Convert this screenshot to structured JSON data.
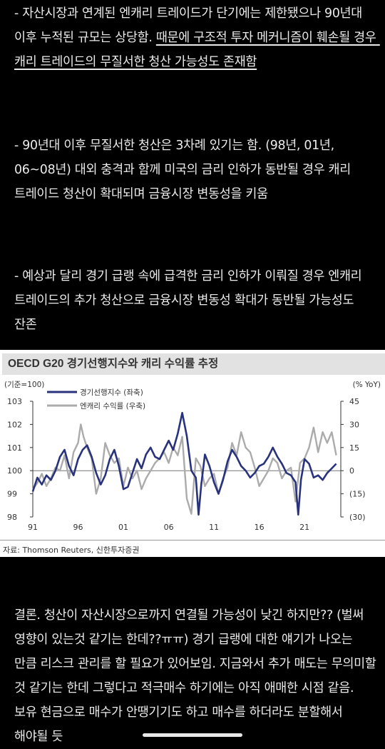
{
  "paragraphs": {
    "p1_prefix": "- 자산시장과 연계된 엔캐리 트레이드가 단기에는 제한됐으나 90년대 이후 누적된 규모는 상당함. ",
    "p1_underlined": "때문에 구조적 투자 메커니즘이 훼손될 경우 캐리 트레이드의 무질서한 청산 가능성도 존재함",
    "p2": "- 90년대 이후 무질서한 청산은 3차례 있기는 함. (98년, 01년, 06~08년) 대외 충격과 함께 미국의 금리 인하가 동반될 경우 캐리 트레이드 청산이 확대되며 금융시장 변동성을 키움",
    "p3": "- 예상과 달리 경기 급랭 속에 급격한 금리 인하가 이뤄질 경우 엔캐리 트레이드의 추가 청산으로 금융시장 변동성 확대가 동반될 가능성도 잔존",
    "p4": "결론. 청산이 자산시장으로까지 연결될 가능성이 낮긴 하지만?? (벌써 영향이 있는것 같기는 한데??ㅠㅠ) 경기 급랭에 대한 얘기가 나오는 만큼 리스크 관리를 할 필요가 있어보임. 지금와서 추가 매도는 무의미할 것 같기는 한데 그렇다고 적극매수 하기에는 아직 애매한 시점 같음. 보유 현금으로 매수가 안땡기기도 하고 매수를 하더라도 분할해서 해야될 듯"
  },
  "figure": {
    "title": "OECD G20 경기선행지수와 캐리 수익률 추정",
    "source": "자료: Thomson Reuters, 신한투자증권"
  },
  "chart_data": {
    "type": "line",
    "title": "OECD G20 경기선행지수와 캐리 수익률 추정",
    "left_axis_label": "(기준=100)",
    "right_axis_label": "(% YoY)",
    "left_ylim": [
      98,
      103
    ],
    "right_ylim": [
      -30,
      45
    ],
    "left_ticks": [
      "103",
      "102",
      "101",
      "100",
      "99",
      "98"
    ],
    "right_ticks": [
      "45",
      "30",
      "15",
      "0",
      "(15)",
      "(30)"
    ],
    "x_ticks": [
      "91",
      "96",
      "01",
      "06",
      "11",
      "16",
      "21"
    ],
    "x_tick_years": [
      1991,
      1996,
      2001,
      2006,
      2011,
      2016,
      2021
    ],
    "xlim": [
      1991,
      2025
    ],
    "legend": [
      "경기선행지수 (좌축)",
      "엔캐리 수익률 (우축)"
    ],
    "colors": {
      "lead": "#28327d",
      "carry": "#ababab"
    },
    "series": [
      {
        "name": "경기선행지수 (좌축)",
        "axis": "left",
        "x": [
          1991,
          1991.5,
          1992,
          1992.5,
          1993,
          1993.5,
          1994,
          1994.5,
          1995,
          1995.5,
          1996,
          1996.5,
          1997,
          1997.5,
          1998,
          1998.5,
          1999,
          1999.5,
          2000,
          2000.5,
          2001,
          2001.5,
          2002,
          2002.5,
          2003,
          2003.5,
          2004,
          2004.5,
          2005,
          2005.5,
          2006,
          2006.5,
          2007,
          2007.5,
          2008,
          2008.5,
          2009,
          2009.3,
          2009.6,
          2010,
          2010.5,
          2011,
          2011.5,
          2012,
          2012.5,
          2013,
          2013.5,
          2014,
          2014.5,
          2015,
          2015.5,
          2016,
          2016.5,
          2017,
          2017.5,
          2018,
          2018.5,
          2019,
          2019.5,
          2020,
          2020.3,
          2020.6,
          2021,
          2021.5,
          2022,
          2022.5,
          2023,
          2023.5,
          2024,
          2024.5
        ],
        "values": [
          99.1,
          99.7,
          99.4,
          99.8,
          99.6,
          100.0,
          100.6,
          100.9,
          100.2,
          99.8,
          100.5,
          100.9,
          101.1,
          100.6,
          99.9,
          99.4,
          99.8,
          100.5,
          100.9,
          100.2,
          99.2,
          99.3,
          99.9,
          100.5,
          100.1,
          100.7,
          101.0,
          100.6,
          100.5,
          100.9,
          101.3,
          100.9,
          101.6,
          102.5,
          101.5,
          100.0,
          99.7,
          98.1,
          99.4,
          100.7,
          100.2,
          99.5,
          99.0,
          99.6,
          100.4,
          100.9,
          100.6,
          100.2,
          100.0,
          99.7,
          99.9,
          100.2,
          100.3,
          100.6,
          101.0,
          100.6,
          100.3,
          99.9,
          99.8,
          99.5,
          98.1,
          99.6,
          100.5,
          100.3,
          99.7,
          99.8,
          99.6,
          99.9,
          100.1,
          100.3
        ]
      },
      {
        "name": "엔캐리 수익률 (우축)",
        "axis": "right",
        "x": [
          1991,
          1991.5,
          1992,
          1992.5,
          1993,
          1993.5,
          1994,
          1994.5,
          1995,
          1995.5,
          1996,
          1996.3,
          1996.6,
          1997,
          1997.5,
          1998,
          1998.5,
          1999,
          1999.5,
          2000,
          2000.5,
          2001,
          2001.5,
          2002,
          2002.5,
          2003,
          2003.5,
          2004,
          2004.5,
          2005,
          2005.5,
          2006,
          2006.5,
          2007,
          2007.5,
          2008,
          2008.5,
          2009,
          2009.5,
          2010,
          2010.5,
          2011,
          2011.5,
          2012,
          2012.5,
          2013,
          2013.5,
          2014,
          2014.5,
          2015,
          2015.5,
          2016,
          2016.5,
          2017,
          2017.5,
          2018,
          2018.5,
          2019,
          2019.5,
          2020,
          2020.5,
          2021,
          2021.5,
          2022,
          2022.5,
          2023,
          2023.5,
          2024,
          2024.5
        ],
        "values": [
          -12,
          -8,
          -2,
          -10,
          -5,
          2,
          0,
          10,
          -5,
          12,
          18,
          30,
          22,
          15,
          8,
          -15,
          -5,
          18,
          10,
          5,
          8,
          -10,
          2,
          -5,
          0,
          -12,
          -5,
          0,
          5,
          8,
          12,
          5,
          15,
          10,
          22,
          -18,
          -28,
          8,
          3,
          -10,
          -5,
          -2,
          -15,
          -5,
          2,
          18,
          10,
          25,
          15,
          12,
          2,
          -10,
          -5,
          0,
          8,
          5,
          -5,
          0,
          2,
          -20,
          5,
          8,
          15,
          28,
          12,
          25,
          18,
          25,
          10
        ]
      }
    ]
  }
}
